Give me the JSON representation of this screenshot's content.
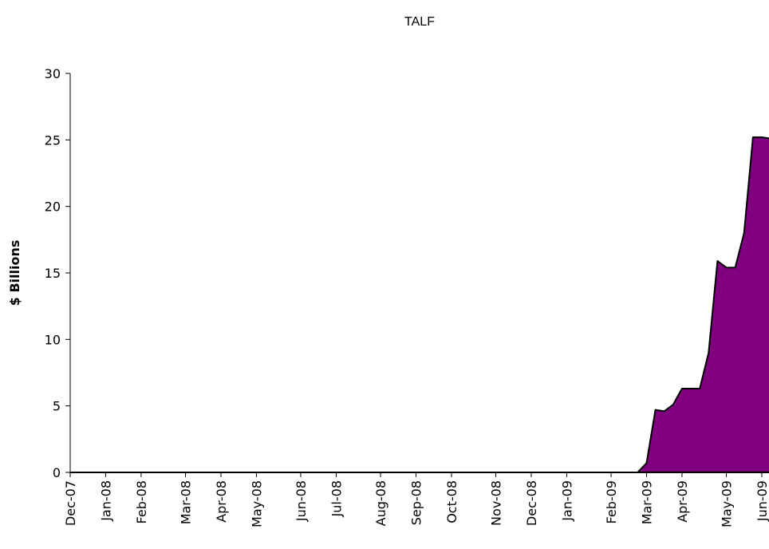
{
  "chart_data": {
    "type": "area",
    "title": "TALF",
    "ylabel": "$ Billions",
    "categories": [
      "Dec-07",
      null,
      null,
      null,
      "Jan-08",
      null,
      null,
      null,
      "Feb-08",
      null,
      null,
      null,
      null,
      "Mar-08",
      null,
      null,
      null,
      "Apr-08",
      null,
      null,
      null,
      "May-08",
      null,
      null,
      null,
      null,
      "Jun-08",
      null,
      null,
      null,
      "Jul-08",
      null,
      null,
      null,
      null,
      "Aug-08",
      null,
      null,
      null,
      "Sep-08",
      null,
      null,
      null,
      "Oct-08",
      null,
      null,
      null,
      null,
      "Nov-08",
      null,
      null,
      null,
      "Dec-08",
      null,
      null,
      null,
      "Jan-09",
      null,
      null,
      null,
      null,
      "Feb-09",
      null,
      null,
      null,
      "Mar-09",
      null,
      null,
      null,
      "Apr-09",
      null,
      null,
      null,
      null,
      "May-09",
      null,
      null,
      null,
      "Jun-09",
      null
    ],
    "values": [
      0,
      0,
      0,
      0,
      0,
      0,
      0,
      0,
      0,
      0,
      0,
      0,
      0,
      0,
      0,
      0,
      0,
      0,
      0,
      0,
      0,
      0,
      0,
      0,
      0,
      0,
      0,
      0,
      0,
      0,
      0,
      0,
      0,
      0,
      0,
      0,
      0,
      0,
      0,
      0,
      0,
      0,
      0,
      0,
      0,
      0,
      0,
      0,
      0,
      0,
      0,
      0,
      0,
      0,
      0,
      0,
      0,
      0,
      0,
      0,
      0,
      0,
      0,
      0,
      0,
      0.7,
      4.7,
      4.6,
      5.1,
      6.3,
      6.3,
      6.3,
      9.0,
      15.9,
      15.4,
      15.4,
      18.0,
      25.2,
      25.2,
      25.1
    ],
    "color": "#800080",
    "ylim": [
      0,
      30
    ],
    "yticks": [
      0,
      5,
      10,
      15,
      20,
      25,
      30
    ],
    "grid": false
  }
}
